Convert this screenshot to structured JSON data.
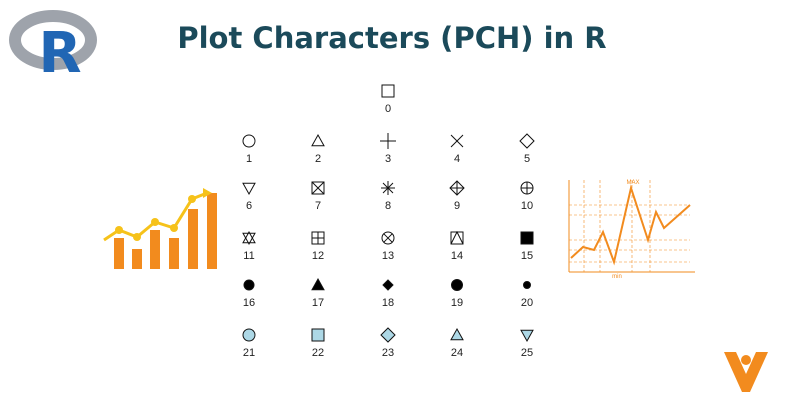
{
  "header": {
    "logo": "R",
    "title": "Plot Characters (PCH) in R"
  },
  "symbols": [
    0,
    1,
    2,
    3,
    4,
    5,
    6,
    7,
    8,
    9,
    10,
    11,
    12,
    13,
    14,
    15,
    16,
    17,
    18,
    19,
    20,
    21,
    22,
    23,
    24,
    25
  ],
  "decoration": {
    "max_label": "MAX",
    "min_label": "min"
  }
}
